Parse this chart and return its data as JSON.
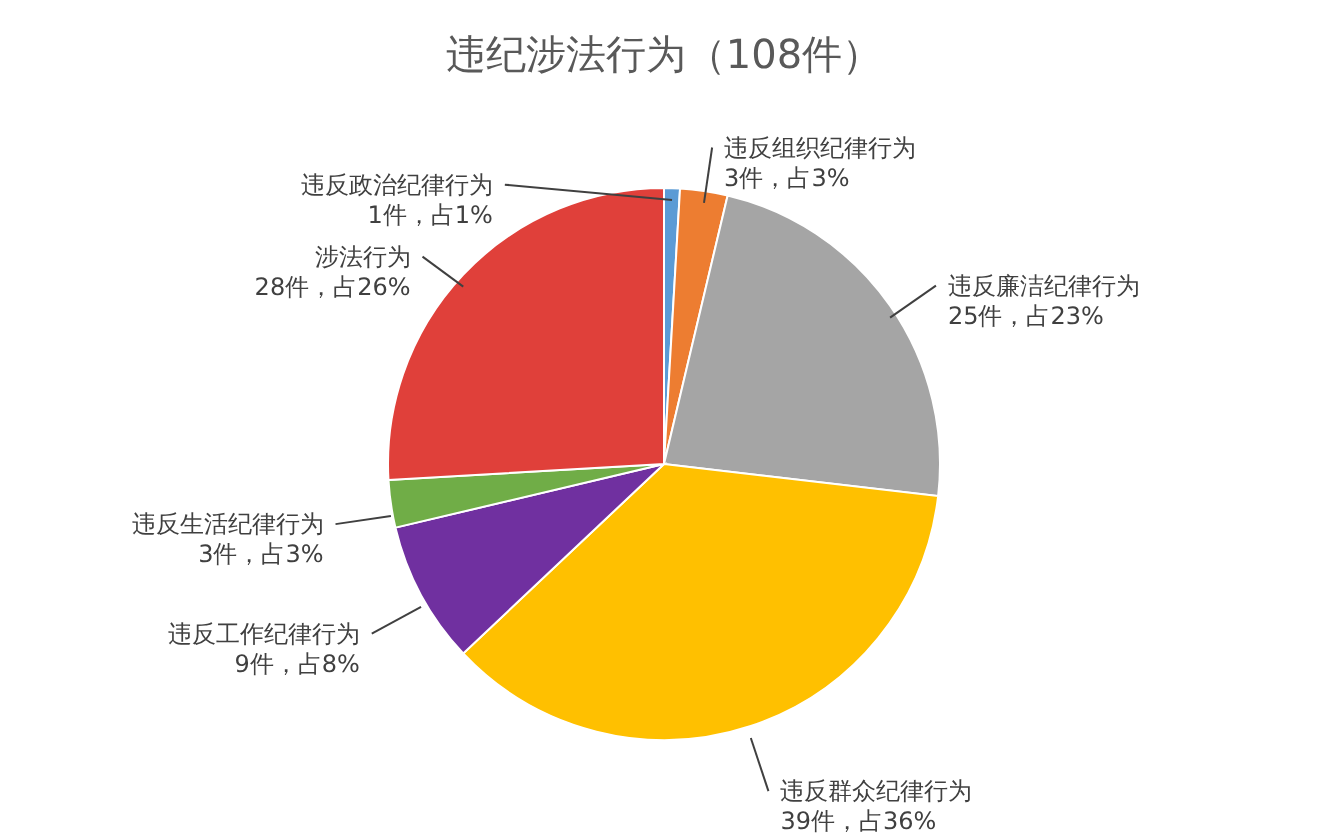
{
  "chart_data": {
    "type": "pie",
    "title": "违纪涉法行为（108件）",
    "categories": [
      "违反政治纪律行为",
      "违反组织纪律行为",
      "违反廉洁纪律行为",
      "违反群众纪律行为",
      "违反工作纪律行为",
      "违反生活纪律行为",
      "涉法行为"
    ],
    "values": [
      1,
      3,
      25,
      39,
      9,
      3,
      28
    ],
    "value_labels": [
      "1件，占1%",
      "3件，占3%",
      "25件，占23%",
      "39件，占36%",
      "9件，占8%",
      "3件，占3%",
      "28件，占26%"
    ],
    "colors": [
      "#5b9bd5",
      "#ed7d31",
      "#a5a5a5",
      "#ffc000",
      "#7030a0",
      "#70ad47",
      "#e0403a"
    ]
  }
}
